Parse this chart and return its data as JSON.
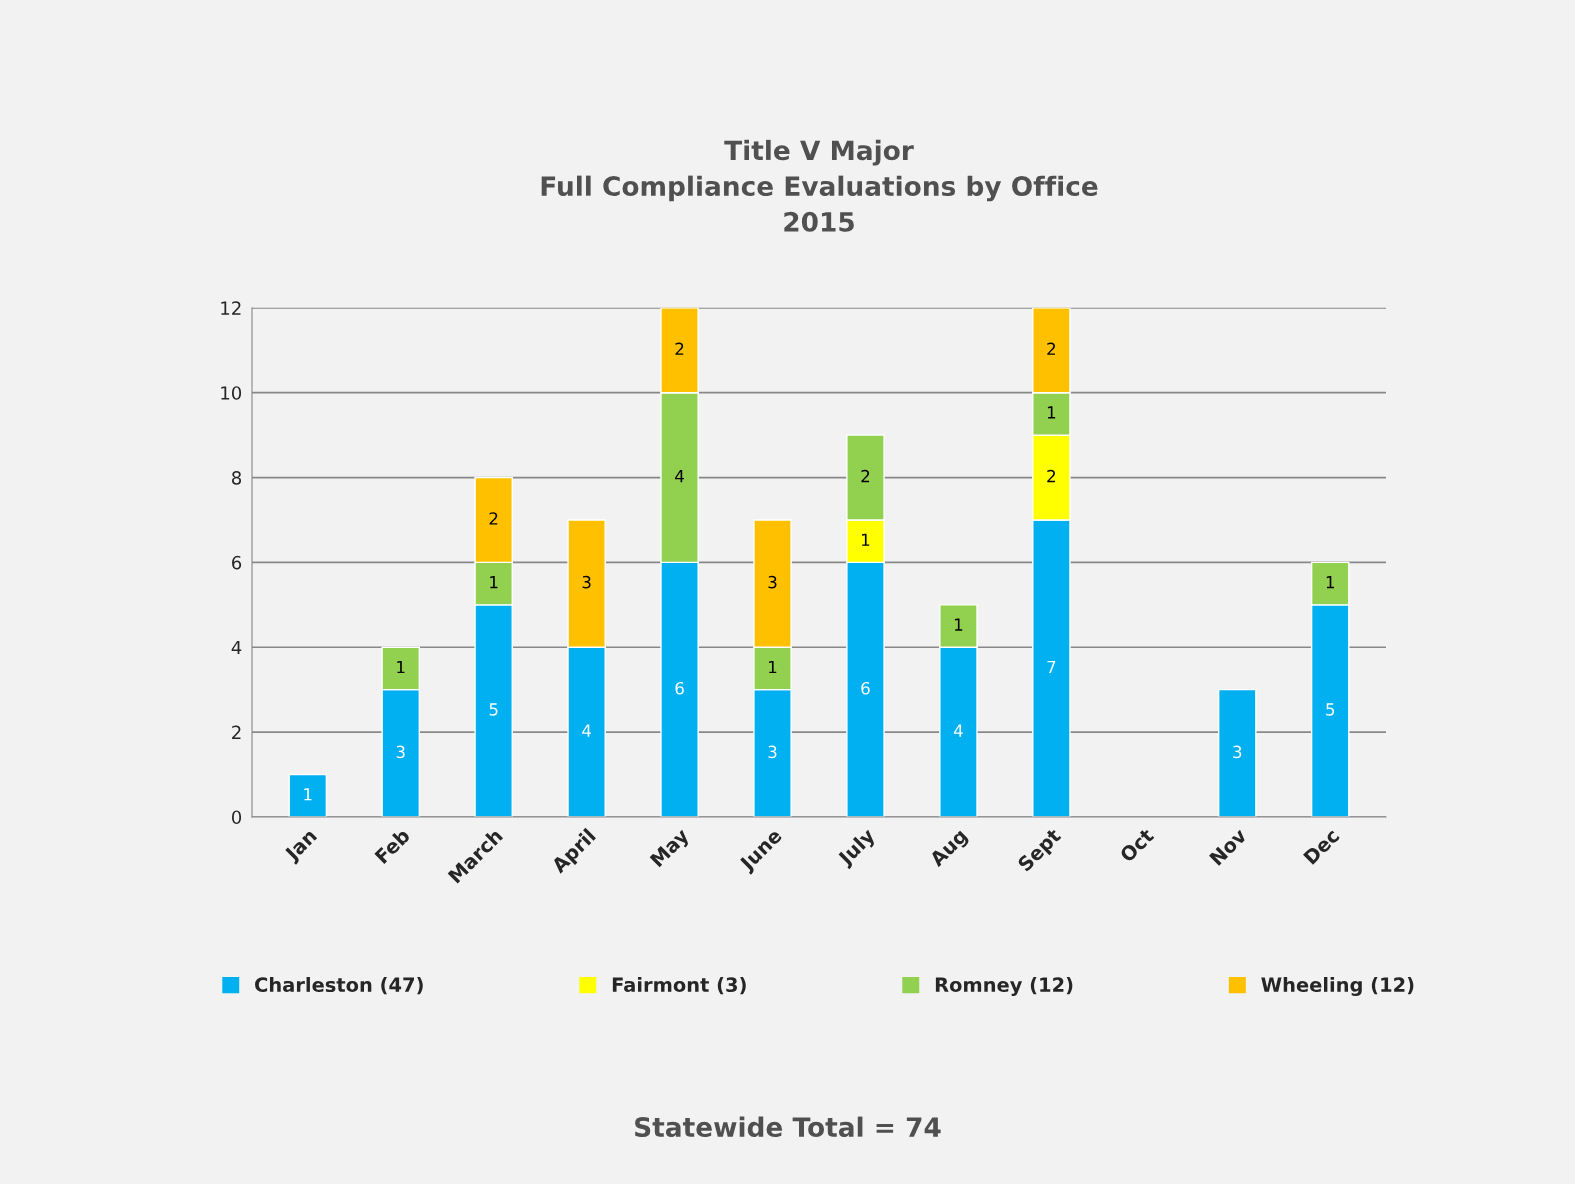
{
  "chart_data": {
    "type": "bar",
    "title": "Title V Major\nFull Compliance Evaluations by Office\n2015",
    "categories": [
      "Jan",
      "Feb",
      "March",
      "April",
      "May",
      "June",
      "July",
      "Aug",
      "Sept",
      "Oct",
      "Nov",
      "Dec"
    ],
    "stacked": true,
    "data_labels": true,
    "grid": "y",
    "legend": "bottom",
    "ylim": [
      0,
      12
    ],
    "yticks": [
      0,
      2,
      4,
      6,
      8,
      10,
      12
    ],
    "series": [
      {
        "name": "Charleston (47)",
        "color": "#00b0f0",
        "values": [
          1,
          3,
          5,
          4,
          6,
          3,
          6,
          4,
          7,
          null,
          3,
          5
        ]
      },
      {
        "name": "Fairmont (3)",
        "color": "#ffff00",
        "values": [
          null,
          null,
          null,
          null,
          null,
          null,
          1,
          null,
          2,
          null,
          null,
          null
        ]
      },
      {
        "name": "Romney (12)",
        "color": "#92d050",
        "values": [
          null,
          1,
          1,
          null,
          4,
          1,
          2,
          1,
          1,
          null,
          null,
          1
        ]
      },
      {
        "name": "Wheeling (12)",
        "color": "#ffc000",
        "values": [
          null,
          null,
          2,
          3,
          2,
          3,
          null,
          null,
          2,
          null,
          null,
          null
        ]
      }
    ],
    "annotations": [
      "Statewide Total = 74"
    ]
  }
}
